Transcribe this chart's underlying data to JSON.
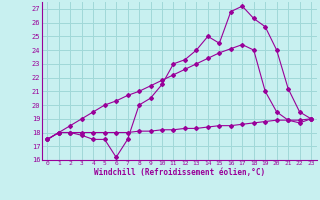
{
  "xlabel": "Windchill (Refroidissement éolien,°C)",
  "bg_color": "#c8f0f0",
  "grid_color": "#a0d8d8",
  "line_color": "#990099",
  "ylim": [
    16,
    27.5
  ],
  "xlim": [
    -0.5,
    23.5
  ],
  "yticks": [
    16,
    17,
    18,
    19,
    20,
    21,
    22,
    23,
    24,
    25,
    26,
    27
  ],
  "xticks": [
    0,
    1,
    2,
    3,
    4,
    5,
    6,
    7,
    8,
    9,
    10,
    11,
    12,
    13,
    14,
    15,
    16,
    17,
    18,
    19,
    20,
    21,
    22,
    23
  ],
  "line1_x": [
    0,
    1,
    2,
    3,
    4,
    5,
    6,
    7,
    8,
    9,
    10,
    11,
    12,
    13,
    14,
    15,
    16,
    17,
    18,
    19,
    20,
    21,
    22,
    23
  ],
  "line1_y": [
    17.5,
    18.0,
    18.0,
    17.8,
    17.5,
    17.5,
    16.2,
    17.5,
    20.0,
    20.5,
    21.5,
    23.0,
    23.3,
    24.0,
    25.0,
    24.5,
    26.8,
    27.2,
    26.3,
    25.7,
    24.0,
    21.2,
    19.5,
    19.0
  ],
  "line2_x": [
    0,
    1,
    2,
    3,
    4,
    5,
    6,
    7,
    8,
    9,
    10,
    11,
    12,
    13,
    14,
    15,
    16,
    17,
    18,
    19,
    20,
    21,
    22,
    23
  ],
  "line2_y": [
    17.5,
    18.0,
    18.5,
    19.0,
    19.5,
    20.0,
    20.3,
    20.7,
    21.0,
    21.4,
    21.8,
    22.2,
    22.6,
    23.0,
    23.4,
    23.8,
    24.1,
    24.4,
    24.0,
    21.0,
    19.5,
    18.9,
    18.7,
    19.0
  ],
  "line3_x": [
    0,
    1,
    2,
    3,
    4,
    5,
    6,
    7,
    8,
    9,
    10,
    11,
    12,
    13,
    14,
    15,
    16,
    17,
    18,
    19,
    20,
    21,
    22,
    23
  ],
  "line3_y": [
    17.5,
    18.0,
    18.0,
    18.0,
    18.0,
    18.0,
    18.0,
    18.0,
    18.1,
    18.1,
    18.2,
    18.2,
    18.3,
    18.3,
    18.4,
    18.5,
    18.5,
    18.6,
    18.7,
    18.8,
    18.9,
    18.9,
    18.9,
    19.0
  ]
}
